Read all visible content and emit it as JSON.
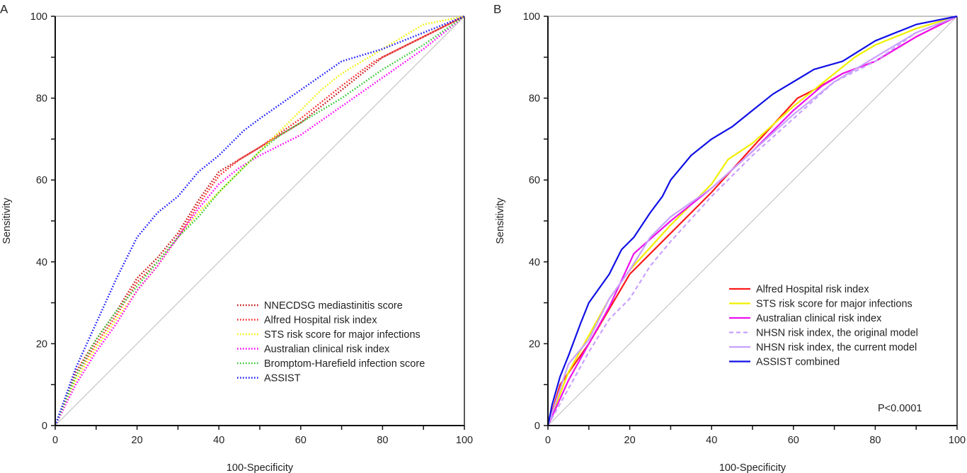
{
  "chart_data": [
    {
      "panel_label": "A",
      "type": "line",
      "xlabel": "100-Specificity",
      "ylabel": "Sensitivity",
      "xlim": [
        0,
        100
      ],
      "ylim": [
        0,
        100
      ],
      "xticks": [
        0,
        20,
        40,
        60,
        80,
        100
      ],
      "yticks": [
        0,
        20,
        40,
        60,
        80,
        100
      ],
      "grid": false,
      "reference_line": "diagonal",
      "legend_placement": "lower-right",
      "series": [
        {
          "name": "NNECDSG mediastinitis score",
          "color": "#c81414",
          "style": "dotted",
          "points": [
            [
              0,
              0
            ],
            [
              5,
              13
            ],
            [
              10,
              21
            ],
            [
              15,
              28
            ],
            [
              20,
              36
            ],
            [
              25,
              41
            ],
            [
              30,
              47
            ],
            [
              35,
              55
            ],
            [
              40,
              62
            ],
            [
              45,
              65
            ],
            [
              50,
              68
            ],
            [
              60,
              74
            ],
            [
              70,
              82
            ],
            [
              80,
              90
            ],
            [
              90,
              95
            ],
            [
              100,
              100
            ]
          ]
        },
        {
          "name": "Alfred Hospital risk index",
          "color": "#ff2020",
          "style": "dotted",
          "points": [
            [
              0,
              0
            ],
            [
              5,
              12
            ],
            [
              10,
              20
            ],
            [
              15,
              27
            ],
            [
              20,
              35
            ],
            [
              25,
              40
            ],
            [
              30,
              46
            ],
            [
              35,
              54
            ],
            [
              40,
              61
            ],
            [
              45,
              65
            ],
            [
              50,
              68
            ],
            [
              60,
              75
            ],
            [
              70,
              83
            ],
            [
              78,
              89
            ],
            [
              90,
              95
            ],
            [
              100,
              100
            ]
          ]
        },
        {
          "name": "STS risk score for major infections",
          "color": "#f0f000",
          "style": "dotted",
          "points": [
            [
              0,
              0
            ],
            [
              5,
              11
            ],
            [
              10,
              19
            ],
            [
              15,
              26
            ],
            [
              20,
              33
            ],
            [
              25,
              39
            ],
            [
              30,
              46
            ],
            [
              35,
              52
            ],
            [
              40,
              57
            ],
            [
              45,
              62
            ],
            [
              50,
              67
            ],
            [
              55,
              72
            ],
            [
              60,
              77
            ],
            [
              65,
              82
            ],
            [
              70,
              86
            ],
            [
              80,
              92
            ],
            [
              90,
              98
            ],
            [
              100,
              100
            ]
          ]
        },
        {
          "name": "Australian clinical risk index",
          "color": "#ff00ff",
          "style": "dotted",
          "points": [
            [
              0,
              0
            ],
            [
              5,
              10
            ],
            [
              10,
              18
            ],
            [
              15,
              25
            ],
            [
              20,
              33
            ],
            [
              25,
              39
            ],
            [
              30,
              46
            ],
            [
              35,
              53
            ],
            [
              40,
              59
            ],
            [
              45,
              63
            ],
            [
              50,
              66
            ],
            [
              60,
              71
            ],
            [
              70,
              78
            ],
            [
              80,
              85
            ],
            [
              90,
              92
            ],
            [
              100,
              100
            ]
          ]
        },
        {
          "name": "Bromptom-Harefield infection score",
          "color": "#33c833",
          "style": "dotted",
          "points": [
            [
              0,
              0
            ],
            [
              5,
              12
            ],
            [
              10,
              21
            ],
            [
              15,
              28
            ],
            [
              20,
              34
            ],
            [
              25,
              40
            ],
            [
              30,
              46
            ],
            [
              35,
              51
            ],
            [
              40,
              57
            ],
            [
              45,
              62
            ],
            [
              50,
              67
            ],
            [
              55,
              71
            ],
            [
              60,
              74
            ],
            [
              70,
              80
            ],
            [
              80,
              87
            ],
            [
              90,
              93
            ],
            [
              100,
              100
            ]
          ]
        },
        {
          "name": "ASSIST",
          "color": "#1a1aff",
          "style": "dotted",
          "points": [
            [
              0,
              0
            ],
            [
              5,
              14
            ],
            [
              10,
              25
            ],
            [
              15,
              36
            ],
            [
              20,
              46
            ],
            [
              25,
              52
            ],
            [
              30,
              56
            ],
            [
              35,
              62
            ],
            [
              40,
              66
            ],
            [
              46,
              72
            ],
            [
              50,
              75
            ],
            [
              60,
              82
            ],
            [
              70,
              89
            ],
            [
              80,
              92
            ],
            [
              90,
              96
            ],
            [
              100,
              100
            ]
          ]
        }
      ]
    },
    {
      "panel_label": "B",
      "type": "line",
      "xlabel": "100-Specificity",
      "ylabel": "Sensitivity",
      "xlim": [
        0,
        100
      ],
      "ylim": [
        0,
        100
      ],
      "xticks": [
        0,
        20,
        40,
        60,
        80,
        100
      ],
      "yticks": [
        0,
        20,
        40,
        60,
        80,
        100
      ],
      "grid": false,
      "reference_line": "diagonal",
      "legend_placement": "lower-right",
      "annotation": "P<0.0001",
      "series": [
        {
          "name": "Alfred Hospital risk index",
          "color": "#ff1a1a",
          "style": "solid",
          "points": [
            [
              0,
              0
            ],
            [
              3,
              10
            ],
            [
              10,
              20
            ],
            [
              20,
              37
            ],
            [
              30,
              47
            ],
            [
              40,
              57
            ],
            [
              50,
              68
            ],
            [
              61,
              80
            ],
            [
              65,
              82
            ],
            [
              72,
              86
            ],
            [
              80,
              89
            ],
            [
              90,
              95
            ],
            [
              100,
              100
            ]
          ]
        },
        {
          "name": "STS risk score for major infections",
          "color": "#f0f000",
          "style": "solid",
          "points": [
            [
              0,
              0
            ],
            [
              5,
              13
            ],
            [
              10,
              22
            ],
            [
              15,
              31
            ],
            [
              20,
              38
            ],
            [
              30,
              49
            ],
            [
              40,
              59
            ],
            [
              44,
              65
            ],
            [
              50,
              69
            ],
            [
              60,
              78
            ],
            [
              70,
              86
            ],
            [
              75,
              90
            ],
            [
              80,
              93
            ],
            [
              90,
              97
            ],
            [
              100,
              100
            ]
          ]
        },
        {
          "name": "Australian clinical risk index",
          "color": "#ee10ee",
          "style": "solid",
          "points": [
            [
              0,
              0
            ],
            [
              5,
              11
            ],
            [
              10,
              20
            ],
            [
              15,
              29
            ],
            [
              21,
              42
            ],
            [
              30,
              50
            ],
            [
              40,
              58
            ],
            [
              50,
              67
            ],
            [
              60,
              77
            ],
            [
              67,
              83
            ],
            [
              72,
              86
            ],
            [
              80,
              89
            ],
            [
              90,
              95
            ],
            [
              100,
              100
            ]
          ]
        },
        {
          "name": "NHSN risk index, the original model",
          "color": "#c8a0ff",
          "style": "dashed",
          "points": [
            [
              0,
              0
            ],
            [
              5,
              9
            ],
            [
              10,
              18
            ],
            [
              15,
              26
            ],
            [
              20,
              31
            ],
            [
              25,
              39
            ],
            [
              30,
              45
            ],
            [
              40,
              56
            ],
            [
              50,
              66
            ],
            [
              60,
              75
            ],
            [
              70,
              84
            ],
            [
              80,
              89
            ],
            [
              90,
              96
            ],
            [
              100,
              100
            ]
          ]
        },
        {
          "name": "NHSN risk index, the current model",
          "color": "#c8a0ff",
          "style": "solid",
          "points": [
            [
              0,
              0
            ],
            [
              5,
              15
            ],
            [
              10,
              21
            ],
            [
              15,
              31
            ],
            [
              20,
              38
            ],
            [
              25,
              46
            ],
            [
              30,
              51
            ],
            [
              40,
              58
            ],
            [
              50,
              67
            ],
            [
              60,
              76
            ],
            [
              70,
              84
            ],
            [
              80,
              90
            ],
            [
              90,
              96
            ],
            [
              100,
              100
            ]
          ]
        },
        {
          "name": "ASSIST combined",
          "color": "#1010e6",
          "style": "solid",
          "points": [
            [
              0,
              0
            ],
            [
              1,
              5
            ],
            [
              3,
              12
            ],
            [
              5,
              17
            ],
            [
              8,
              25
            ],
            [
              10,
              30
            ],
            [
              15,
              37
            ],
            [
              18,
              43
            ],
            [
              21,
              46
            ],
            [
              25,
              52
            ],
            [
              28,
              56
            ],
            [
              30,
              60
            ],
            [
              35,
              66
            ],
            [
              40,
              70
            ],
            [
              45,
              73
            ],
            [
              50,
              77
            ],
            [
              55,
              81
            ],
            [
              60,
              84
            ],
            [
              65,
              87
            ],
            [
              72,
              89
            ],
            [
              80,
              94
            ],
            [
              90,
              98
            ],
            [
              100,
              100
            ]
          ]
        }
      ]
    }
  ]
}
